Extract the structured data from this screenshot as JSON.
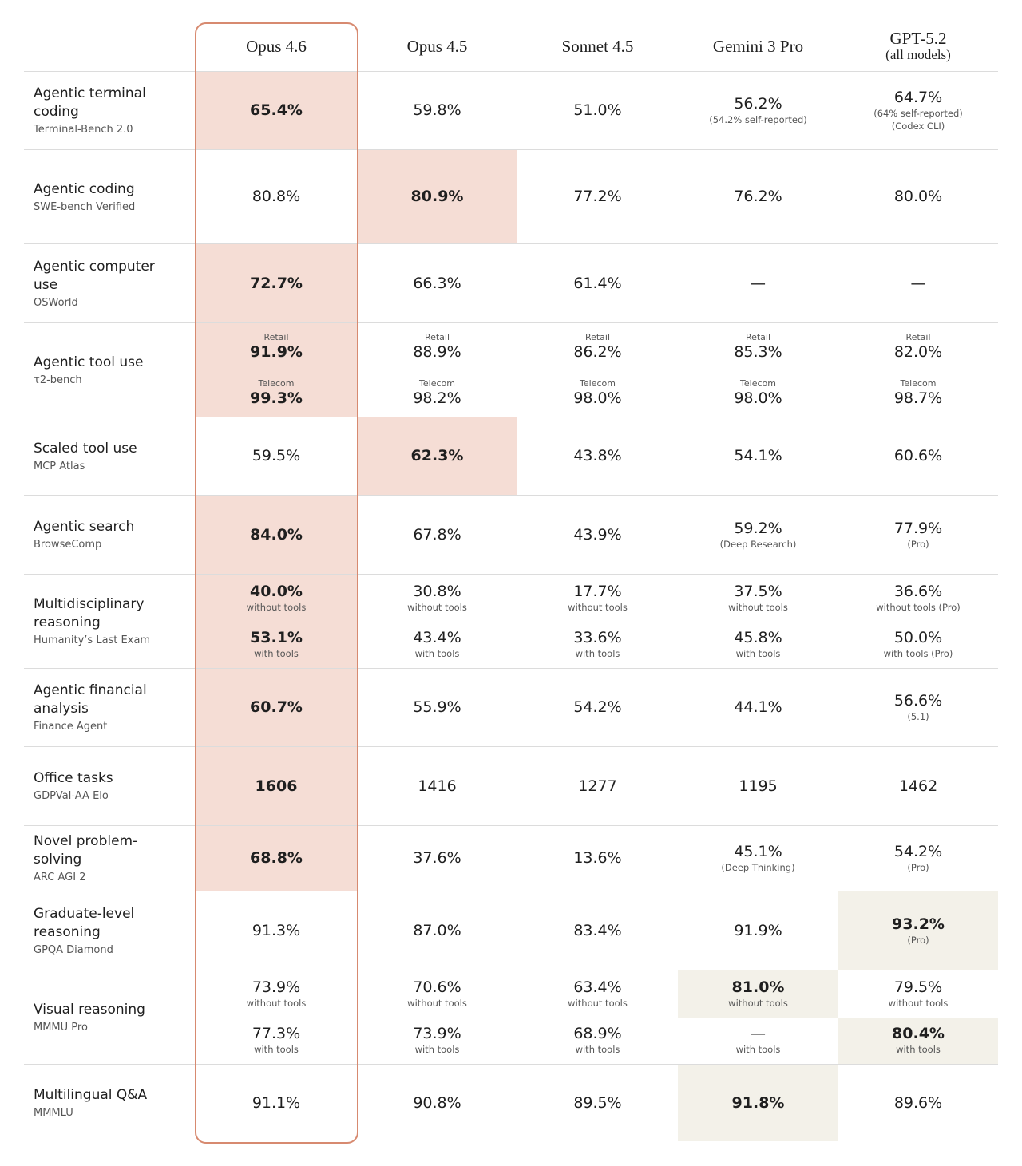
{
  "columns": [
    {
      "name": "Opus 4.6"
    },
    {
      "name": "Opus 4.5"
    },
    {
      "name": "Sonnet 4.5"
    },
    {
      "name": "Gemini 3 Pro"
    },
    {
      "name": "GPT-5.2",
      "note": "(all models)"
    }
  ],
  "rows": [
    {
      "label": "Agentic terminal coding",
      "benchmark": "Terminal-Bench 2.0",
      "cells": [
        {
          "value": "65.4%",
          "highlight": "#f5ddd5"
        },
        {
          "value": "59.8%"
        },
        {
          "value": "51.0%"
        },
        {
          "value": "56.2%",
          "notes": [
            "(54.2% self-reported)"
          ]
        },
        {
          "value": "64.7%",
          "notes": [
            "(64% self-reported)",
            "(Codex CLI)"
          ]
        }
      ]
    },
    {
      "label": "Agentic coding",
      "benchmark": "SWE-bench Verified",
      "cells": [
        {
          "value": "80.8%"
        },
        {
          "value": "80.9%",
          "highlight": "#f5ddd5"
        },
        {
          "value": "77.2%"
        },
        {
          "value": "76.2%"
        },
        {
          "value": "80.0%"
        }
      ]
    },
    {
      "label": "Agentic computer use",
      "benchmark": "OSWorld",
      "cells": [
        {
          "value": "72.7%",
          "highlight": "#f5ddd5"
        },
        {
          "value": "66.3%"
        },
        {
          "value": "61.4%"
        },
        {
          "value": "—"
        },
        {
          "value": "—"
        }
      ]
    },
    {
      "label": "Agentic tool use",
      "benchmark": "τ2-bench",
      "cells": [
        {
          "highlight": "#f5ddd5",
          "entries": [
            {
              "caption": "Retail",
              "value": "91.9%"
            },
            {
              "caption": "Telecom",
              "value": "99.3%"
            }
          ]
        },
        {
          "entries": [
            {
              "caption": "Retail",
              "value": "88.9%"
            },
            {
              "caption": "Telecom",
              "value": "98.2%"
            }
          ]
        },
        {
          "entries": [
            {
              "caption": "Retail",
              "value": "86.2%"
            },
            {
              "caption": "Telecom",
              "value": "98.0%"
            }
          ]
        },
        {
          "entries": [
            {
              "caption": "Retail",
              "value": "85.3%"
            },
            {
              "caption": "Telecom",
              "value": "98.0%"
            }
          ]
        },
        {
          "entries": [
            {
              "caption": "Retail",
              "value": "82.0%"
            },
            {
              "caption": "Telecom",
              "value": "98.7%"
            }
          ]
        }
      ]
    },
    {
      "label": "Scaled tool use",
      "benchmark": "MCP Atlas",
      "cells": [
        {
          "value": "59.5%"
        },
        {
          "value": "62.3%",
          "highlight": "#f5ddd5"
        },
        {
          "value": "43.8%"
        },
        {
          "value": "54.1%"
        },
        {
          "value": "60.6%"
        }
      ]
    },
    {
      "label": "Agentic search",
      "benchmark": "BrowseComp",
      "cells": [
        {
          "value": "84.0%",
          "highlight": "#f5ddd5"
        },
        {
          "value": "67.8%"
        },
        {
          "value": "43.9%"
        },
        {
          "value": "59.2%",
          "notes": [
            "(Deep Research)"
          ]
        },
        {
          "value": "77.9%",
          "notes": [
            "(Pro)"
          ]
        }
      ]
    },
    {
      "label": "Multidisciplinary reasoning",
      "benchmark": "Humanity’s Last Exam",
      "cells": [
        {
          "highlight": "#f5ddd5",
          "entries": [
            {
              "value": "40.0%",
              "notes": [
                "without tools"
              ]
            },
            {
              "value": "53.1%",
              "notes": [
                "with tools"
              ]
            }
          ]
        },
        {
          "entries": [
            {
              "value": "30.8%",
              "notes": [
                "without tools"
              ]
            },
            {
              "value": "43.4%",
              "notes": [
                "with tools"
              ]
            }
          ]
        },
        {
          "entries": [
            {
              "value": "17.7%",
              "notes": [
                "without tools"
              ]
            },
            {
              "value": "33.6%",
              "notes": [
                "with tools"
              ]
            }
          ]
        },
        {
          "entries": [
            {
              "value": "37.5%",
              "notes": [
                "without tools"
              ]
            },
            {
              "value": "45.8%",
              "notes": [
                "with tools"
              ]
            }
          ]
        },
        {
          "entries": [
            {
              "value": "36.6%",
              "notes": [
                "without tools (Pro)"
              ]
            },
            {
              "value": "50.0%",
              "notes": [
                "with tools (Pro)"
              ]
            }
          ]
        }
      ]
    },
    {
      "label": "Agentic financial analysis",
      "benchmark": "Finance Agent",
      "cells": [
        {
          "value": "60.7%",
          "highlight": "#f5ddd5"
        },
        {
          "value": "55.9%"
        },
        {
          "value": "54.2%"
        },
        {
          "value": "44.1%"
        },
        {
          "value": "56.6%",
          "notes": [
            "(5.1)"
          ]
        }
      ]
    },
    {
      "label": "Office tasks",
      "benchmark": "GDPVal-AA Elo",
      "cells": [
        {
          "value": "1606",
          "highlight": "#f5ddd5"
        },
        {
          "value": "1416"
        },
        {
          "value": "1277"
        },
        {
          "value": "1195"
        },
        {
          "value": "1462"
        }
      ]
    },
    {
      "label": "Novel problem-solving",
      "benchmark": "ARC AGI 2",
      "cells": [
        {
          "value": "68.8%",
          "highlight": "#f5ddd5"
        },
        {
          "value": "37.6%"
        },
        {
          "value": "13.6%"
        },
        {
          "value": "45.1%",
          "notes": [
            "(Deep Thinking)"
          ]
        },
        {
          "value": "54.2%",
          "notes": [
            "(Pro)"
          ]
        }
      ]
    },
    {
      "label": "Graduate-level reasoning",
      "benchmark": "GPQA Diamond",
      "cells": [
        {
          "value": "91.3%"
        },
        {
          "value": "87.0%"
        },
        {
          "value": "83.4%"
        },
        {
          "value": "91.9%"
        },
        {
          "value": "93.2%",
          "notes": [
            "(Pro)"
          ],
          "highlight": "#f3f1e9"
        }
      ]
    },
    {
      "label": "Visual reasoning",
      "benchmark": "MMMU Pro",
      "cells": [
        {
          "entries": [
            {
              "value": "73.9%",
              "notes": [
                "without tools"
              ]
            },
            {
              "value": "77.3%",
              "notes": [
                "with tools"
              ]
            }
          ]
        },
        {
          "entries": [
            {
              "value": "70.6%",
              "notes": [
                "without tools"
              ]
            },
            {
              "value": "73.9%",
              "notes": [
                "with tools"
              ]
            }
          ]
        },
        {
          "entries": [
            {
              "value": "63.4%",
              "notes": [
                "without tools"
              ]
            },
            {
              "value": "68.9%",
              "notes": [
                "with tools"
              ]
            }
          ]
        },
        {
          "entries": [
            {
              "value": "81.0%",
              "notes": [
                "without tools"
              ],
              "highlight": "#f3f1e9"
            },
            {
              "value": "—",
              "notes": [
                "with tools"
              ]
            }
          ]
        },
        {
          "entries": [
            {
              "value": "79.5%",
              "notes": [
                "without tools"
              ]
            },
            {
              "value": "80.4%",
              "notes": [
                "with tools"
              ],
              "highlight": "#f3f1e9"
            }
          ]
        }
      ]
    },
    {
      "label": "Multilingual Q&A",
      "benchmark": "MMMLU",
      "cells": [
        {
          "value": "91.1%"
        },
        {
          "value": "90.8%"
        },
        {
          "value": "89.5%"
        },
        {
          "value": "91.8%",
          "highlight": "#f3f1e9"
        },
        {
          "value": "89.6%"
        }
      ]
    }
  ]
}
